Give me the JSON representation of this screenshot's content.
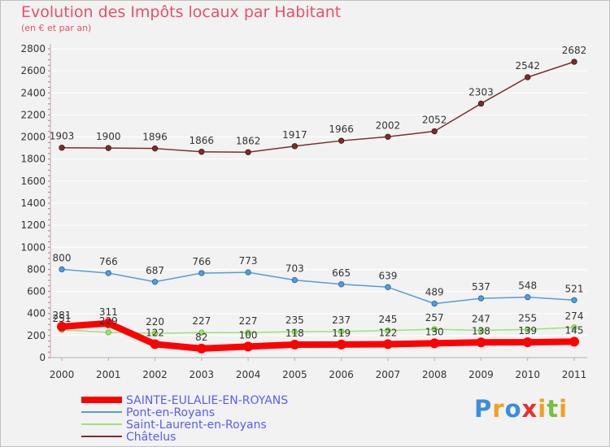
{
  "page": {
    "title": "Evolution des Impôts locaux par Habitant",
    "subtitle": "(en € et par an)",
    "logo_text": "Proxiti"
  },
  "chart_data": {
    "type": "line",
    "title": "Evolution des Impôts locaux par Habitant",
    "subtitle": "(en € et par an)",
    "xlabel": "",
    "ylabel": "",
    "ylim": [
      0,
      2800
    ],
    "yticks": [
      0,
      200,
      400,
      600,
      800,
      1000,
      1200,
      1400,
      1600,
      1800,
      2000,
      2200,
      2400,
      2600,
      2800
    ],
    "x": [
      "2000",
      "2001",
      "2002",
      "2003",
      "2004",
      "2005",
      "2006",
      "2007",
      "2008",
      "2009",
      "2010",
      "2011"
    ],
    "legend_position": "bottom-left",
    "series": [
      {
        "name": "SAINTE-EULALIE-EN-ROYANS",
        "color": "#ff0000",
        "legend_color": "#5a5aff",
        "emphasis": true,
        "values": [
          281,
          311,
          122,
          82,
          100,
          118,
          119,
          122,
          130,
          138,
          139,
          145
        ],
        "labels": [
          "281",
          "311",
          "122",
          "82",
          "100",
          "118",
          "119",
          "122",
          "130",
          "138",
          "139",
          "145"
        ]
      },
      {
        "name": "Pont-en-Royans",
        "color": "#5b9bd5",
        "legend_color": "#5a5aff",
        "values": [
          800,
          766,
          687,
          766,
          773,
          703,
          665,
          639,
          489,
          537,
          548,
          521
        ],
        "labels": [
          "800",
          "766",
          "687",
          "766",
          "773",
          "703",
          "665",
          "639",
          "489",
          "537",
          "548",
          "521"
        ]
      },
      {
        "name": "Saint-Laurent-en-Royans",
        "color": "#9ee07a",
        "legend_color": "#5a5aff",
        "values": [
          251,
          229,
          220,
          227,
          227,
          235,
          237,
          245,
          257,
          247,
          255,
          274
        ],
        "labels": [
          "251",
          "229",
          "220",
          "227",
          "227",
          "235",
          "237",
          "245",
          "257",
          "247",
          "255",
          "274"
        ]
      },
      {
        "name": "Châtelus",
        "color": "#7a2f2f",
        "legend_color": "#5a5aff",
        "values": [
          1903,
          1900,
          1896,
          1866,
          1862,
          1917,
          1966,
          2002,
          2052,
          2303,
          2542,
          2682
        ],
        "labels": [
          "1903",
          "1900",
          "1896",
          "1866",
          "1862",
          "1917",
          "1966",
          "2002",
          "2052",
          "2303",
          "2542",
          "2682"
        ]
      }
    ]
  },
  "colors": {
    "title": "#e8506a",
    "axis": "#b0b0b0",
    "tick_text": "#333333",
    "grid": "#ffffff",
    "plot_bg": "#f2f2f2"
  }
}
